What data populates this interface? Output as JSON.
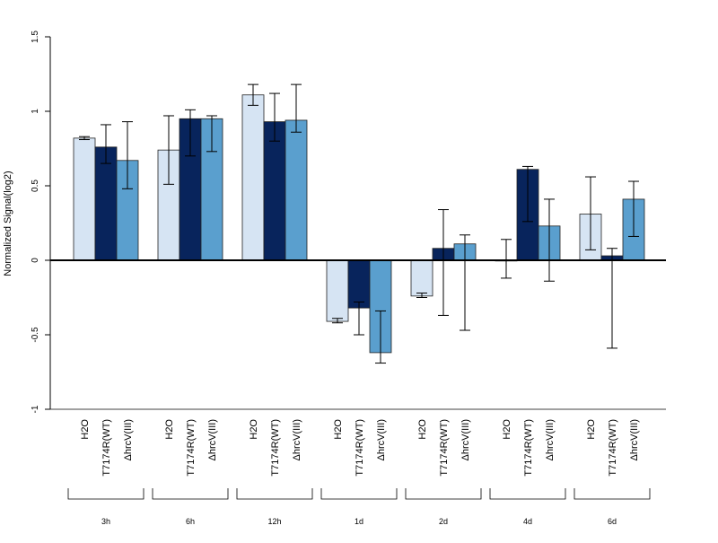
{
  "chart_data": {
    "type": "bar",
    "ylabel": "Normalized Signal(log2)",
    "ylim": [
      -1,
      1.5
    ],
    "yticks": [
      "-1",
      "-0.5",
      "0",
      "0.5",
      "1",
      "1.5"
    ],
    "grid": false,
    "legend": "none",
    "categories": [
      "3h",
      "6h",
      "12h",
      "1d",
      "2d",
      "4d",
      "6d"
    ],
    "series": [
      {
        "name": "H2O",
        "color": "#d6e4f3",
        "values": [
          0.82,
          0.74,
          1.11,
          -0.41,
          -0.24,
          0.0,
          0.31
        ],
        "err_low": [
          0.81,
          0.51,
          1.04,
          -0.42,
          -0.25,
          -0.12,
          0.07
        ],
        "err_high": [
          0.83,
          0.97,
          1.18,
          -0.39,
          -0.22,
          0.14,
          0.56
        ]
      },
      {
        "name": "T7174R(WT)",
        "color": "#08245c",
        "values": [
          0.76,
          0.95,
          0.93,
          -0.32,
          0.08,
          0.61,
          0.03
        ],
        "err_low": [
          0.65,
          0.7,
          0.8,
          -0.5,
          -0.37,
          0.26,
          -0.59
        ],
        "err_high": [
          0.91,
          1.01,
          1.12,
          -0.28,
          0.34,
          0.63,
          0.08
        ]
      },
      {
        "name": "ΔhrcV(III)",
        "color": "#5a9fce",
        "values": [
          0.67,
          0.95,
          0.94,
          -0.62,
          0.11,
          0.23,
          0.41
        ],
        "err_low": [
          0.48,
          0.73,
          0.86,
          -0.69,
          -0.47,
          -0.14,
          0.16
        ],
        "err_high": [
          0.93,
          0.97,
          1.18,
          -0.34,
          0.17,
          0.41,
          0.53
        ]
      }
    ]
  }
}
